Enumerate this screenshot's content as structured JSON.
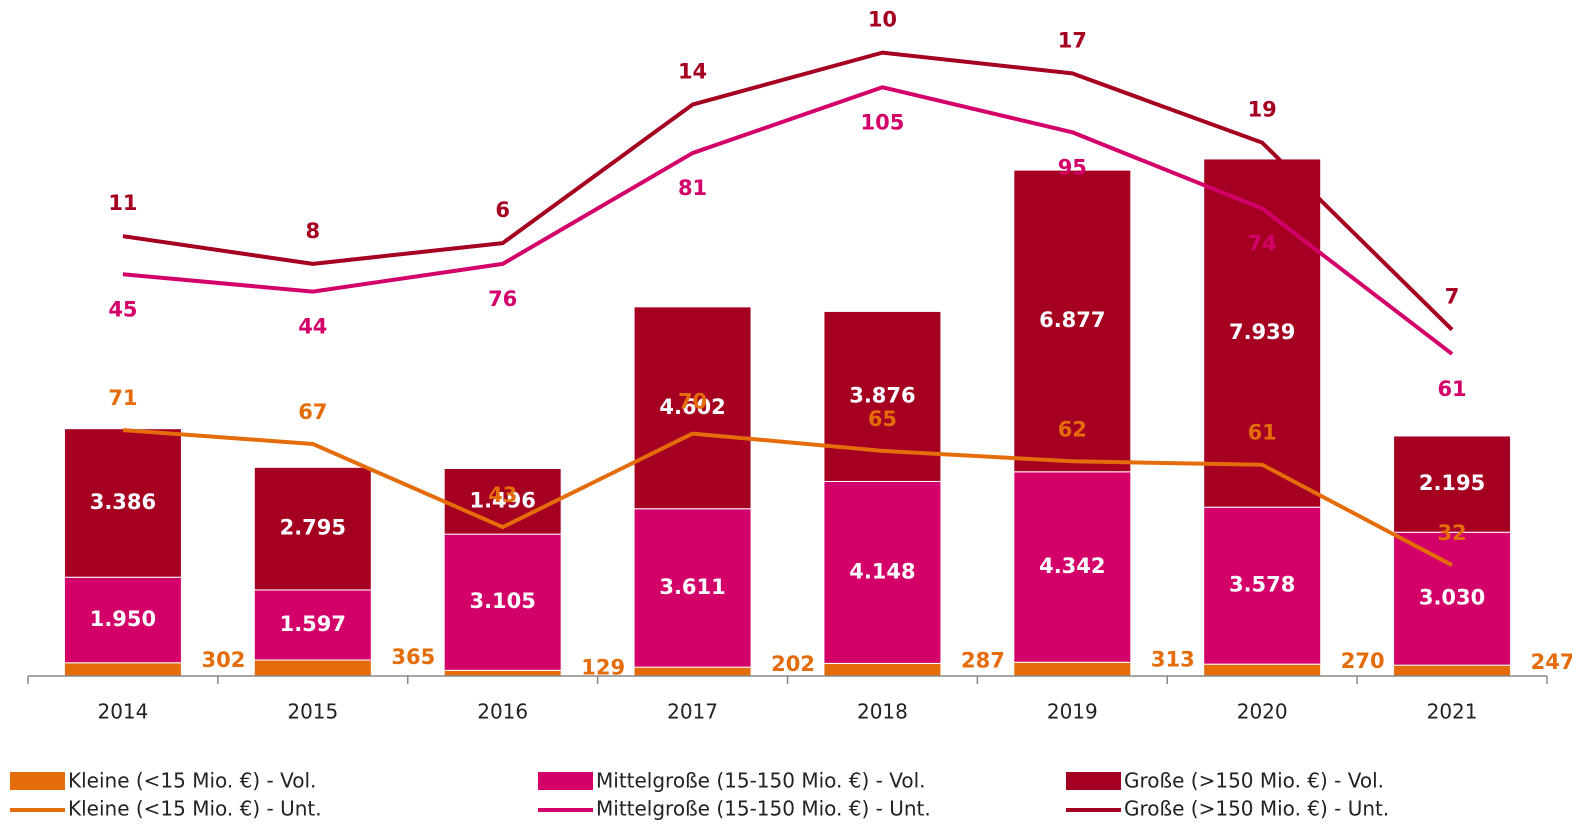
{
  "chart_data": {
    "type": "bar",
    "categories": [
      "2014",
      "2015",
      "2016",
      "2017",
      "2018",
      "2019",
      "2020",
      "2021"
    ],
    "ylim": [
      0,
      15000
    ],
    "y2lim": [
      0,
      190
    ],
    "stacked": true,
    "series": [
      {
        "name": "Kleine (<15 Mio. €) - Vol.",
        "type": "bar",
        "color": "#e46c0a",
        "values": [
          302,
          365,
          129,
          202,
          287,
          313,
          270,
          247
        ]
      },
      {
        "name": "Mittelgroße (15-150 Mio. €) - Vol.",
        "type": "bar",
        "color": "#d4006a",
        "values": [
          1950,
          1597,
          3105,
          3611,
          4148,
          4342,
          3578,
          3030
        ],
        "value_labels": [
          "1.950",
          "1.597",
          "3.105",
          "3.611",
          "4.148",
          "4.342",
          "3.578",
          "3.030"
        ]
      },
      {
        "name": "Große (>150 Mio. €) - Vol.",
        "type": "bar",
        "color": "#a50021",
        "values": [
          3386,
          2795,
          1496,
          4602,
          3876,
          6877,
          7939,
          2195
        ],
        "value_labels": [
          "3.386",
          "2.795",
          "1.496",
          "4.602",
          "3.876",
          "6.877",
          "7.939",
          "2.195"
        ]
      },
      {
        "name": "Kleine (<15 Mio. €) - Unt.",
        "type": "line",
        "axis": "y2",
        "color": "#e46c0a",
        "values": [
          71,
          67,
          43,
          70,
          65,
          62,
          61,
          32
        ]
      },
      {
        "name": "Mittelgroße (15-150 Mio. €) - Unt.",
        "type": "line",
        "axis": "y2",
        "color": "#d4006a",
        "values": [
          45,
          44,
          76,
          81,
          105,
          95,
          74,
          61
        ]
      },
      {
        "name": "Große (>150 Mio. €) - Unt.",
        "type": "line",
        "axis": "y2",
        "color": "#a50021",
        "values": [
          11,
          8,
          6,
          14,
          10,
          17,
          19,
          7
        ]
      }
    ]
  }
}
